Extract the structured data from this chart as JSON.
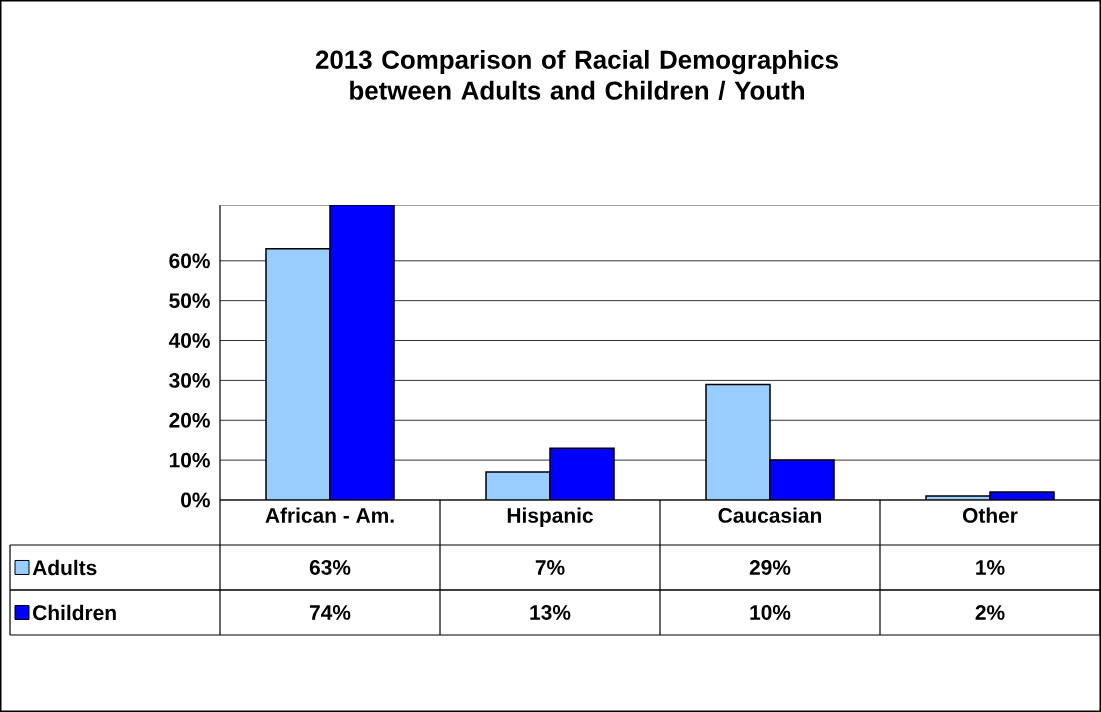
{
  "chart_data": {
    "type": "bar",
    "title": "2013 Comparison of Racial Demographics between Adults and Children / Youth",
    "categories": [
      "African - Am.",
      "Hispanic",
      "Caucasian",
      "Other"
    ],
    "series": [
      {
        "name": "Adults",
        "color": "#99ccff",
        "values": [
          63,
          7,
          29,
          1
        ],
        "value_labels": [
          "63%",
          "7%",
          "29%",
          "1%"
        ]
      },
      {
        "name": "Children",
        "color": "#0000ff",
        "values": [
          74,
          13,
          10,
          2
        ],
        "value_labels": [
          "74%",
          "13%",
          "10%",
          "2%"
        ]
      }
    ],
    "ylim": [
      0,
      74
    ],
    "yticks": [
      {
        "value": 0,
        "label": "0%"
      },
      {
        "value": 10,
        "label": "10%"
      },
      {
        "value": 20,
        "label": "20%"
      },
      {
        "value": 30,
        "label": "30%"
      },
      {
        "value": 40,
        "label": "40%"
      },
      {
        "value": 50,
        "label": "50%"
      },
      {
        "value": 60,
        "label": "60%"
      }
    ],
    "grid": "y",
    "legend": "bottom"
  }
}
